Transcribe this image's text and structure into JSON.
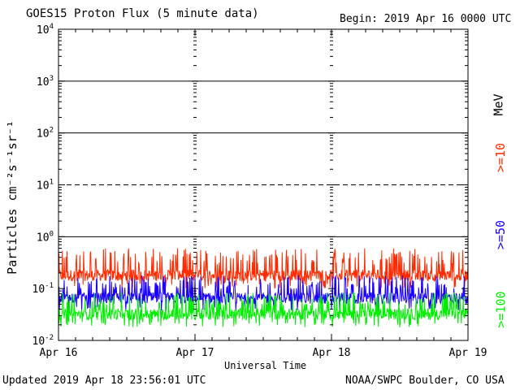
{
  "header": {
    "title": "GOES15 Proton Flux (5 minute data)",
    "begin": "Begin: 2019 Apr 16 0000 UTC"
  },
  "footer": {
    "updated": "Updated 2019 Apr 18 23:56:01 UTC",
    "credit": "NOAA/SWPC Boulder, CO USA"
  },
  "right_labels": {
    "unit": "MeV",
    "ge10": ">=10",
    "ge50": ">=50",
    "ge100": ">=100"
  },
  "colors": {
    "ge10": "#ff2a00",
    "ge50": "#1a00ff",
    "ge100": "#00ee00",
    "axis": "#000000"
  },
  "chart_data": {
    "type": "line",
    "title": "GOES15 Proton Flux (5 minute data)",
    "xlabel": "Universal Time",
    "ylabel": "Particles cm⁻²s⁻¹sr⁻¹",
    "x_ticks": [
      "Apr 16",
      "Apr 17",
      "Apr 18",
      "Apr 19"
    ],
    "y_scale": "log",
    "ylim": [
      0.01,
      10000
    ],
    "y_ticks": [
      {
        "base": "10",
        "exp": "-2",
        "value": 0.01
      },
      {
        "base": "10",
        "exp": "-1",
        "value": 0.1
      },
      {
        "base": "10",
        "exp": "0",
        "value": 1
      },
      {
        "base": "10",
        "exp": "1",
        "value": 10
      },
      {
        "base": "10",
        "exp": "2",
        "value": 100
      },
      {
        "base": "10",
        "exp": "3",
        "value": 1000
      },
      {
        "base": "10",
        "exp": "4",
        "value": 10000
      }
    ],
    "reference_lines": [
      {
        "value": 1,
        "style": "solid"
      },
      {
        "value": 10,
        "style": "dashed"
      },
      {
        "value": 100,
        "style": "solid"
      },
      {
        "value": 1000,
        "style": "solid"
      }
    ],
    "x_start": "2019-04-16 00:00 UTC",
    "x_end": "2019-04-19 00:00 UTC",
    "sample_interval": "5 minute",
    "series": [
      {
        "name": ">=10 MeV",
        "color": "#ff2a00",
        "baseline": 0.18,
        "spike_max": 0.6
      },
      {
        "name": ">=50 MeV",
        "color": "#1a00ff",
        "baseline": 0.065,
        "spike_max": 0.18
      },
      {
        "name": ">=100 MeV",
        "color": "#00ee00",
        "baseline": 0.032,
        "spike_max": 0.085
      }
    ]
  }
}
